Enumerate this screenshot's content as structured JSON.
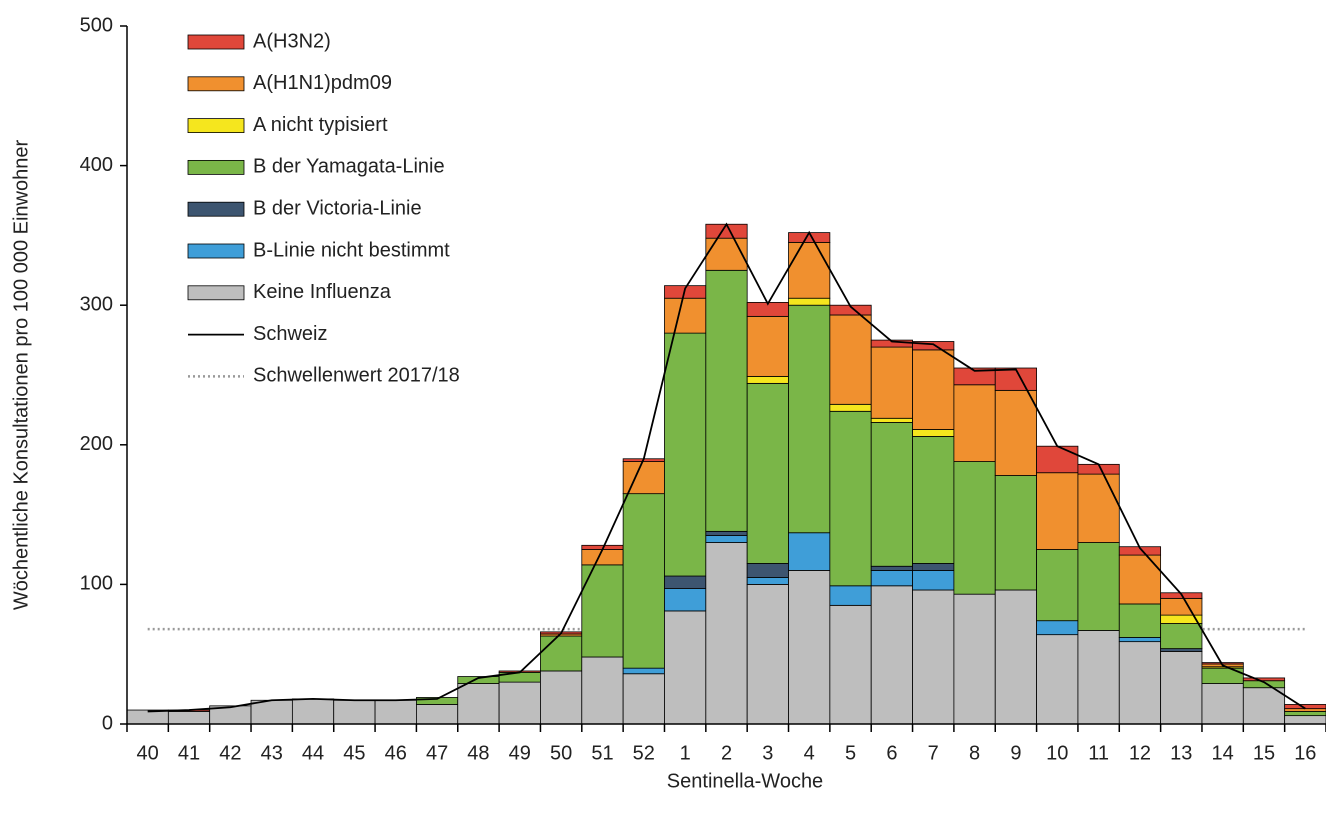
{
  "chart_data": {
    "type": "bar",
    "stacked": true,
    "x_label": "Sentinella-Woche",
    "y_label": "Wöchentliche Konsultationen pro 100 000 Einwohner",
    "categories": [
      "40",
      "41",
      "42",
      "43",
      "44",
      "45",
      "46",
      "47",
      "48",
      "49",
      "50",
      "51",
      "52",
      "1",
      "2",
      "3",
      "4",
      "5",
      "6",
      "7",
      "8",
      "9",
      "10",
      "11",
      "12",
      "13",
      "14",
      "15",
      "16"
    ],
    "series": [
      {
        "name": "Keine Influenza",
        "color": "#bebebe",
        "values": [
          10,
          9,
          13,
          17,
          18,
          17,
          17,
          14,
          29,
          30,
          38,
          48,
          36,
          81,
          130,
          100,
          110,
          85,
          99,
          96,
          93,
          96,
          64,
          67,
          59,
          52,
          29,
          26,
          6
        ]
      },
      {
        "name": "B-Linie nicht bestimmt",
        "color": "#3f9ed8",
        "values": [
          0,
          0,
          0,
          0,
          0,
          0,
          0,
          0,
          0,
          0,
          0,
          0,
          4,
          16,
          5,
          5,
          27,
          14,
          11,
          14,
          0,
          0,
          10,
          0,
          3,
          0,
          0,
          0,
          0
        ]
      },
      {
        "name": "B der Victoria-Linie",
        "color": "#3d5570",
        "values": [
          0,
          0,
          0,
          0,
          0,
          0,
          0,
          0,
          0,
          0,
          0,
          0,
          0,
          9,
          3,
          10,
          0,
          0,
          3,
          5,
          0,
          0,
          0,
          0,
          0,
          2,
          0,
          0,
          0
        ]
      },
      {
        "name": "B der Yamagata-Linie",
        "color": "#7ab648",
        "values": [
          0,
          0,
          0,
          0,
          0,
          0,
          0,
          5,
          5,
          7,
          25,
          66,
          125,
          174,
          187,
          129,
          163,
          125,
          103,
          91,
          95,
          82,
          51,
          63,
          24,
          18,
          11,
          5,
          3
        ]
      },
      {
        "name": "A nicht typisiert",
        "color": "#f5e61e",
        "values": [
          0,
          0,
          0,
          0,
          0,
          0,
          0,
          0,
          0,
          0,
          0,
          0,
          0,
          0,
          0,
          5,
          5,
          5,
          3,
          5,
          0,
          0,
          0,
          0,
          0,
          6,
          1,
          0,
          0
        ]
      },
      {
        "name": "A(H1N1)pdm09",
        "color": "#f0902f",
        "values": [
          0,
          0,
          0,
          0,
          0,
          0,
          0,
          0,
          0,
          0,
          1.5,
          11,
          23,
          25,
          23,
          43,
          40,
          64,
          51,
          57,
          55,
          61,
          55,
          49,
          35,
          12,
          2,
          0,
          2
        ]
      },
      {
        "name": "A(H3N2)",
        "color": "#e0473a",
        "values": [
          0,
          1,
          0,
          0,
          0,
          0,
          0,
          0,
          0,
          1,
          1.5,
          3,
          2,
          9,
          10,
          10,
          7,
          7,
          5,
          6,
          12,
          16,
          19,
          7,
          6,
          4,
          1,
          2,
          3
        ]
      }
    ],
    "line": {
      "name": "Schweiz",
      "color": "#000000",
      "values": [
        9,
        10,
        12,
        17,
        18,
        17,
        17,
        18,
        33,
        37,
        65,
        125,
        190,
        312,
        358,
        301,
        352,
        299,
        274,
        272,
        253,
        254,
        199,
        186,
        126,
        93,
        42,
        30,
        11
      ]
    },
    "threshold": {
      "name": "Schwellenwert 2017/18",
      "color": "#999999",
      "value": 68
    },
    "ylim": [
      0,
      500
    ],
    "yticks": [
      0,
      100,
      200,
      300,
      400,
      500
    ],
    "legend": "upper left"
  }
}
